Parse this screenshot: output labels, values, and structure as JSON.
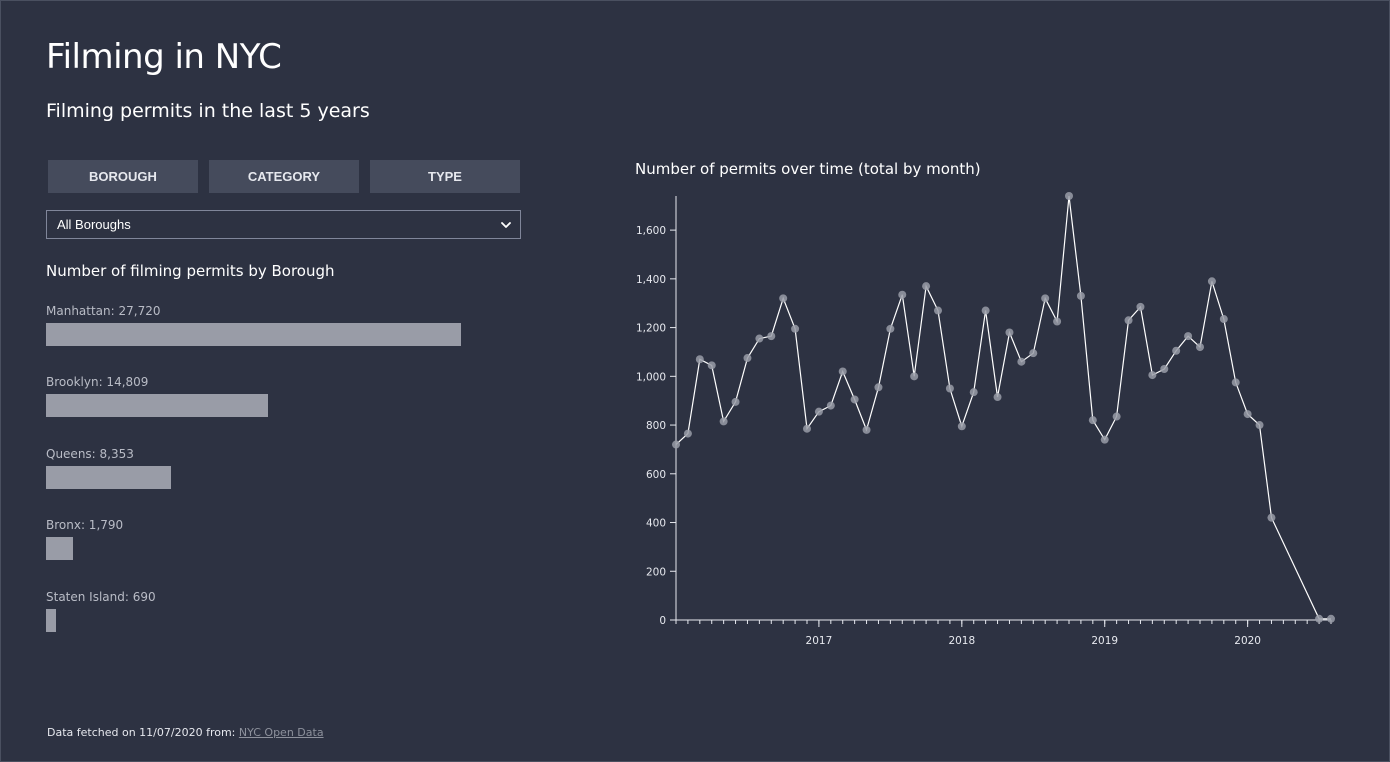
{
  "header": {
    "title": "Filming in NYC",
    "subtitle": "Filming permits in the last 5 years"
  },
  "tabs": [
    {
      "label": "BOROUGH"
    },
    {
      "label": "CATEGORY"
    },
    {
      "label": "TYPE"
    }
  ],
  "filter": {
    "selected": "All Boroughs"
  },
  "borough_chart": {
    "title": "Number of filming permits by Borough",
    "items": [
      {
        "label": "Manhattan: 27,720",
        "name": "Manhattan",
        "value": 27720
      },
      {
        "label": "Brooklyn: 14,809",
        "name": "Brooklyn",
        "value": 14809
      },
      {
        "label": "Queens: 8,353",
        "name": "Queens",
        "value": 8353
      },
      {
        "label": "Bronx: 1,790",
        "name": "Bronx",
        "value": 1790
      },
      {
        "label": "Staten Island: 690",
        "name": "Staten Island",
        "value": 690
      }
    ]
  },
  "line_chart_title": "Number of permits over time (total by month)",
  "footer": {
    "prefix": "Data fetched on 11/07/2020 from:",
    "link_text": "NYC Open Data"
  },
  "colors": {
    "background": "#2d3242",
    "bar": "#999ca7",
    "button": "#454b5c",
    "point": "#999ca7",
    "line": "#ffffff"
  },
  "chart_data": {
    "type": "line",
    "title": "Number of permits over time (total by month)",
    "xlabel": "",
    "ylabel": "",
    "ylim": [
      0,
      1740
    ],
    "yticks": [
      0,
      200,
      400,
      600,
      800,
      1000,
      1200,
      1400,
      1600
    ],
    "ytick_labels": [
      "0",
      "200",
      "400",
      "600",
      "800",
      "1,000",
      "1,200",
      "1,400",
      "1,600"
    ],
    "xticks": [
      "2017-01",
      "2018-01",
      "2019-01",
      "2020-01"
    ],
    "xtick_labels": [
      "2017",
      "2018",
      "2019",
      "2020"
    ],
    "xlim": [
      "2016-01",
      "2020-08"
    ],
    "x": [
      "2016-01",
      "2016-02",
      "2016-03",
      "2016-04",
      "2016-05",
      "2016-06",
      "2016-07",
      "2016-08",
      "2016-09",
      "2016-10",
      "2016-11",
      "2016-12",
      "2017-01",
      "2017-02",
      "2017-03",
      "2017-04",
      "2017-05",
      "2017-06",
      "2017-07",
      "2017-08",
      "2017-09",
      "2017-10",
      "2017-11",
      "2017-12",
      "2018-01",
      "2018-02",
      "2018-03",
      "2018-04",
      "2018-05",
      "2018-06",
      "2018-07",
      "2018-08",
      "2018-09",
      "2018-10",
      "2018-11",
      "2018-12",
      "2019-01",
      "2019-02",
      "2019-03",
      "2019-04",
      "2019-05",
      "2019-06",
      "2019-07",
      "2019-08",
      "2019-09",
      "2019-10",
      "2019-11",
      "2019-12",
      "2020-01",
      "2020-02",
      "2020-03",
      "2020-07",
      "2020-08"
    ],
    "series": [
      {
        "values": [
          720,
          765,
          1070,
          1045,
          815,
          895,
          1075,
          1155,
          1165,
          1320,
          1195,
          785,
          855,
          880,
          1020,
          905,
          780,
          955,
          1195,
          1335,
          1000,
          1370,
          1270,
          950,
          795,
          935,
          1270,
          915,
          1180,
          1060,
          1095,
          1320,
          1225,
          1740,
          1330,
          820,
          740,
          835,
          1230,
          1285,
          1005,
          1030,
          1105,
          1165,
          1120,
          1390,
          1235,
          975,
          845,
          800,
          420,
          5,
          5
        ]
      }
    ]
  }
}
